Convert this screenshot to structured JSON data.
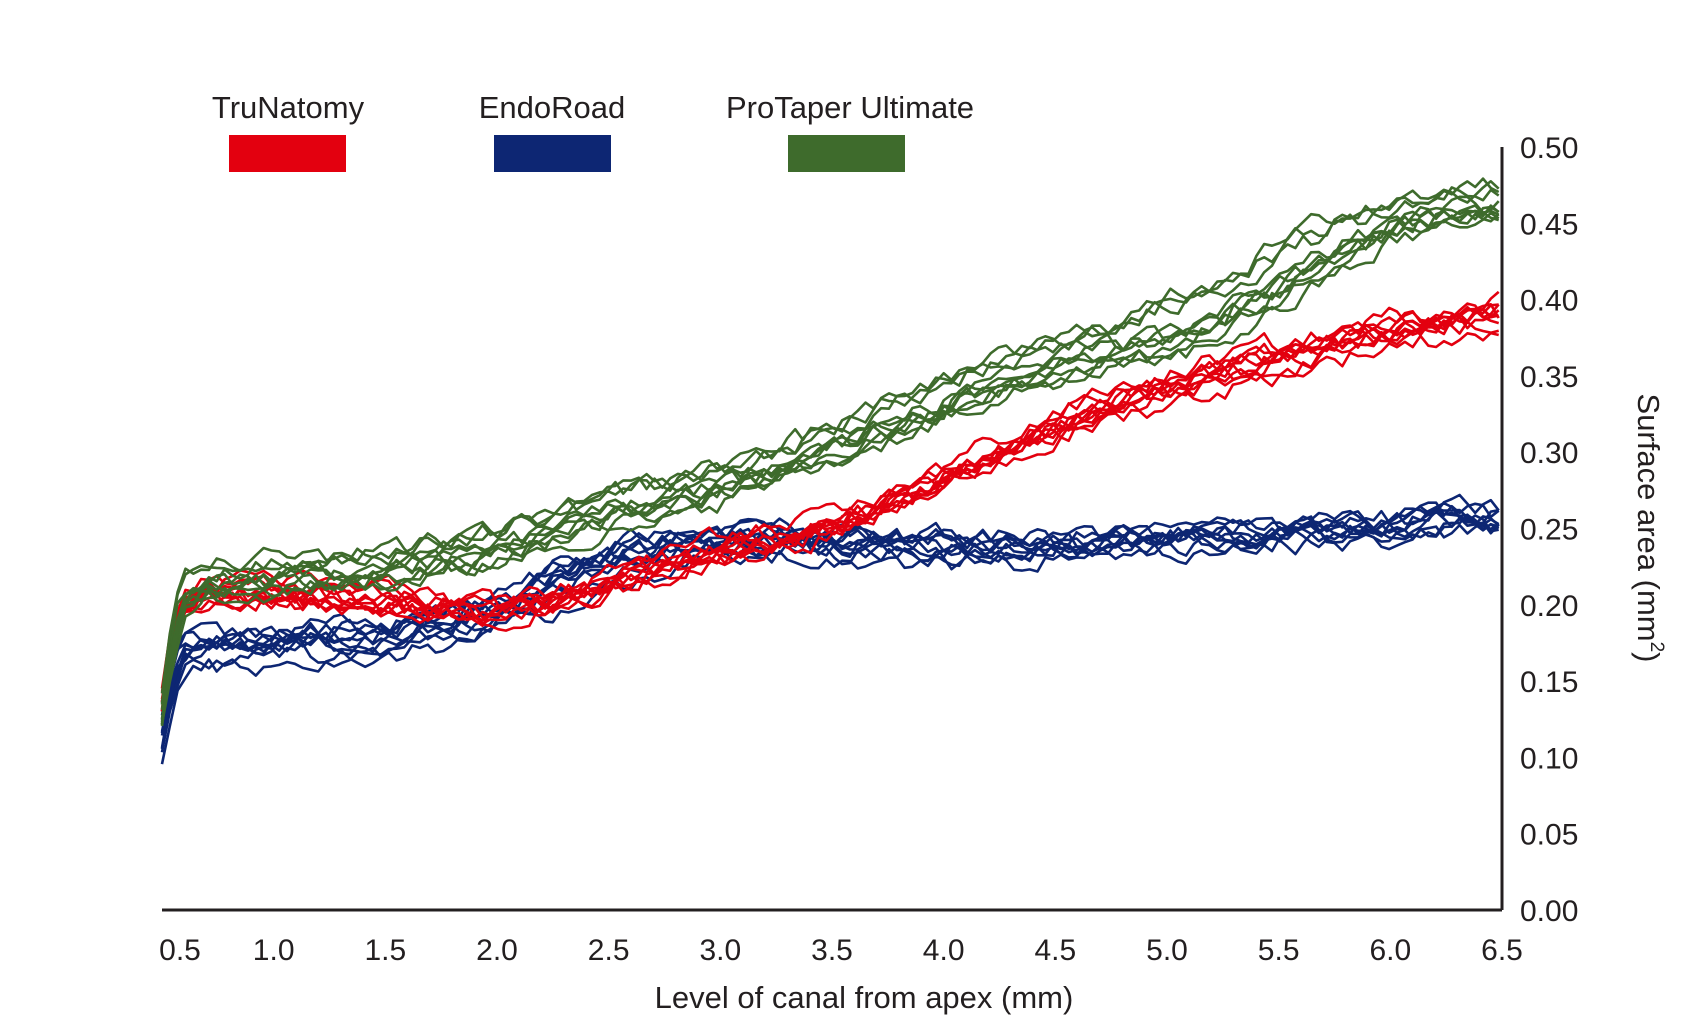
{
  "chart_data": {
    "type": "line",
    "title": "",
    "xlabel": "Level of canal from apex (mm)",
    "ylabel": "Surface area (mm",
    "ylabel_superscript": "2",
    "ylabel_close": ")",
    "x_ticks": [
      "0.5",
      "1.0",
      "1.5",
      "2.0",
      "2.5",
      "3.0",
      "3.5",
      "4.0",
      "4.5",
      "5.0",
      "5.5",
      "6.0",
      "6.5"
    ],
    "y_ticks": [
      "0.00",
      "0.05",
      "0.10",
      "0.15",
      "0.20",
      "0.25",
      "0.30",
      "0.35",
      "0.40",
      "0.45",
      "0.50"
    ],
    "xlim": [
      0.5,
      6.5
    ],
    "ylim": [
      0.0,
      0.5
    ],
    "y_axis_side": "right",
    "grid": false,
    "legend_position": "top-left",
    "series_groups": [
      {
        "name": "TruNatomy",
        "color": "#e3000f",
        "lines": 10,
        "x": [
          0.5,
          0.55,
          0.6,
          0.7,
          0.8,
          1.0,
          1.25,
          1.5,
          1.75,
          2.0,
          2.25,
          2.5,
          2.75,
          3.0,
          3.25,
          3.5,
          3.75,
          4.0,
          4.25,
          4.5,
          4.75,
          5.0,
          5.25,
          5.5,
          5.75,
          6.0,
          6.25,
          6.5
        ],
        "mean": [
          0.13,
          0.17,
          0.19,
          0.2,
          0.2,
          0.195,
          0.193,
          0.19,
          0.19,
          0.19,
          0.195,
          0.205,
          0.215,
          0.225,
          0.235,
          0.245,
          0.26,
          0.275,
          0.29,
          0.305,
          0.32,
          0.33,
          0.34,
          0.35,
          0.36,
          0.37,
          0.375,
          0.38
        ],
        "spread": [
          0.01,
          0.02,
          0.02,
          0.015,
          0.015,
          0.02,
          0.02,
          0.022,
          0.015,
          0.01,
          0.012,
          0.015,
          0.02,
          0.02,
          0.015,
          0.01,
          0.012,
          0.015,
          0.02,
          0.02,
          0.02,
          0.02,
          0.022,
          0.02,
          0.018,
          0.018,
          0.018,
          0.02
        ]
      },
      {
        "name": "EndoRoad",
        "color": "#0d2673",
        "lines": 10,
        "x": [
          0.5,
          0.55,
          0.6,
          0.7,
          0.8,
          1.0,
          1.25,
          1.5,
          1.75,
          2.0,
          2.25,
          2.5,
          2.75,
          3.0,
          3.25,
          3.5,
          3.75,
          4.0,
          4.25,
          4.5,
          4.75,
          5.0,
          5.25,
          5.5,
          5.75,
          6.0,
          6.25,
          6.5
        ],
        "mean": [
          0.11,
          0.15,
          0.165,
          0.17,
          0.17,
          0.172,
          0.175,
          0.178,
          0.185,
          0.195,
          0.21,
          0.225,
          0.235,
          0.24,
          0.242,
          0.24,
          0.238,
          0.236,
          0.236,
          0.238,
          0.24,
          0.242,
          0.244,
          0.246,
          0.248,
          0.25,
          0.255,
          0.255
        ],
        "spread": [
          0.012,
          0.012,
          0.01,
          0.01,
          0.01,
          0.01,
          0.01,
          0.01,
          0.01,
          0.01,
          0.015,
          0.015,
          0.01,
          0.008,
          0.008,
          0.008,
          0.01,
          0.01,
          0.01,
          0.008,
          0.008,
          0.008,
          0.008,
          0.008,
          0.008,
          0.008,
          0.01,
          0.01
        ]
      },
      {
        "name": "ProTaper Ultimate",
        "color": "#3e6b2c",
        "lines": 10,
        "x": [
          0.5,
          0.55,
          0.6,
          0.7,
          0.8,
          1.0,
          1.25,
          1.5,
          1.75,
          2.0,
          2.25,
          2.5,
          2.75,
          3.0,
          3.25,
          3.5,
          3.75,
          4.0,
          4.25,
          4.5,
          4.75,
          5.0,
          5.25,
          5.5,
          5.75,
          6.0,
          6.25,
          6.5
        ],
        "mean": [
          0.13,
          0.18,
          0.205,
          0.215,
          0.218,
          0.22,
          0.222,
          0.225,
          0.232,
          0.24,
          0.25,
          0.262,
          0.272,
          0.28,
          0.292,
          0.305,
          0.32,
          0.335,
          0.348,
          0.36,
          0.37,
          0.38,
          0.395,
          0.415,
          0.435,
          0.45,
          0.46,
          0.465
        ],
        "spread": [
          0.012,
          0.02,
          0.012,
          0.01,
          0.01,
          0.012,
          0.012,
          0.012,
          0.012,
          0.012,
          0.012,
          0.012,
          0.012,
          0.012,
          0.012,
          0.012,
          0.012,
          0.012,
          0.012,
          0.012,
          0.015,
          0.02,
          0.02,
          0.02,
          0.018,
          0.012,
          0.01,
          0.01
        ]
      }
    ]
  }
}
